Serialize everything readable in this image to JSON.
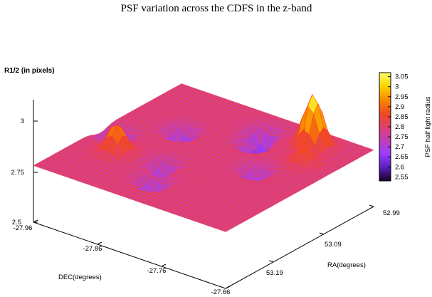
{
  "chart_data": {
    "type": "surface",
    "title": "PSF variation across the CDFS in the z-band",
    "zlabel": "R1/2 (in pixels)",
    "xlabel": "DEC(degrees)",
    "ylabel": "RA(degrees)",
    "colorbar_label": "PSF half light radius",
    "z_ticks": [
      "2.5",
      "2.75",
      "3"
    ],
    "dec_ticks": [
      "-27.96",
      "-27.86",
      "-27.76",
      "-27.66"
    ],
    "ra_ticks": [
      "52.99",
      "53.09",
      "53.19"
    ],
    "colorbar_ticks": [
      "3.05",
      "3",
      "2.95",
      "2.9",
      "2.85",
      "2.8",
      "2.75",
      "2.7",
      "2.65",
      "2.6",
      "2.55"
    ],
    "zlim": [
      2.5,
      3.05
    ],
    "dec_range": [
      -27.96,
      -27.66
    ],
    "ra_range": [
      52.99,
      53.19
    ],
    "colormap": [
      "#1a0026",
      "#5a1fb8",
      "#9b3cff",
      "#c03fb8",
      "#e0406e",
      "#f04a20",
      "#f88a00",
      "#fcd400",
      "#ffff66"
    ],
    "baseline_value": 2.78,
    "features": [
      {
        "dec": -27.935,
        "ra": 53.1,
        "value": 2.63,
        "kind": "dip"
      },
      {
        "dec": -27.9,
        "ra": 53.13,
        "value": 2.93,
        "kind": "peak"
      },
      {
        "dec": -27.88,
        "ra": 53.06,
        "value": 2.64,
        "kind": "dip"
      },
      {
        "dec": -27.84,
        "ra": 53.12,
        "value": 2.68,
        "kind": "dip"
      },
      {
        "dec": -27.82,
        "ra": 53.15,
        "value": 2.66,
        "kind": "dip"
      },
      {
        "dec": -27.8,
        "ra": 53.02,
        "value": 2.64,
        "kind": "dip"
      },
      {
        "dec": -27.79,
        "ra": 53.04,
        "value": 2.66,
        "kind": "dip"
      },
      {
        "dec": -27.72,
        "ra": 53.02,
        "value": 3.05,
        "kind": "peak"
      },
      {
        "dec": -27.74,
        "ra": 53.08,
        "value": 2.67,
        "kind": "dip"
      },
      {
        "dec": -27.7,
        "ra": 53.05,
        "value": 2.87,
        "kind": "peak"
      }
    ]
  }
}
